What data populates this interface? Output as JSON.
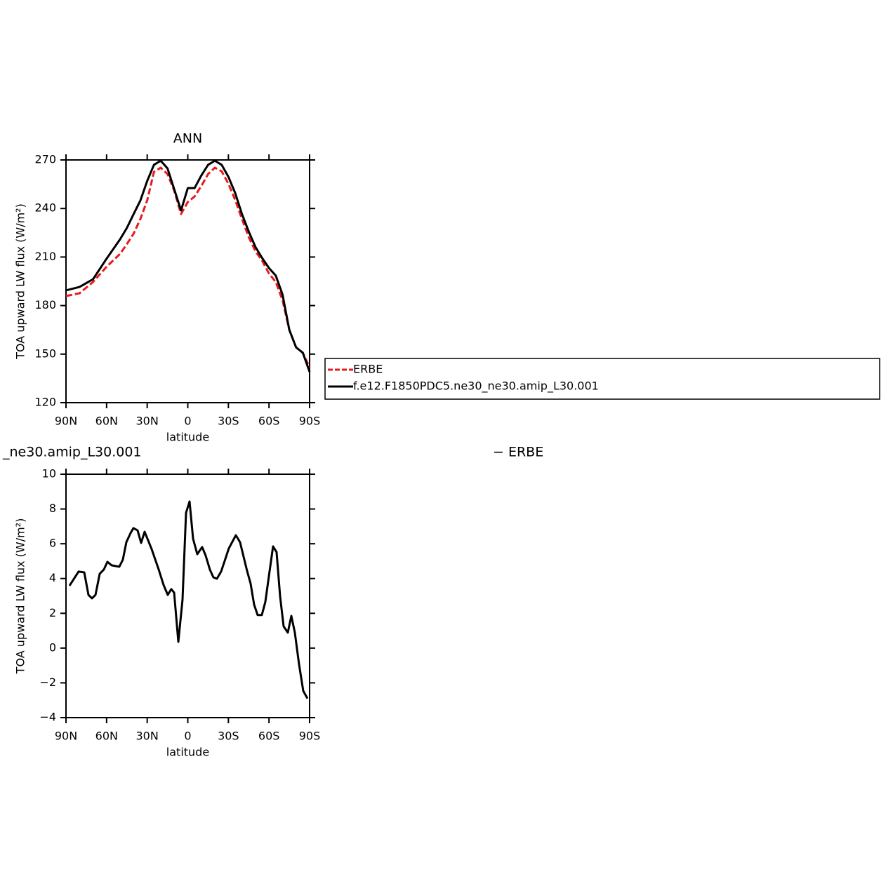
{
  "chart_data": [
    {
      "type": "line",
      "title": "ANN",
      "xlabel": "latitude",
      "ylabel": "TOA upward LW flux (W/m²)",
      "xlim": [
        90,
        -90
      ],
      "xticks": [
        {
          "value": 90,
          "label": "90N"
        },
        {
          "value": 60,
          "label": "60N"
        },
        {
          "value": 30,
          "label": "30N"
        },
        0,
        {
          "value": -30,
          "label": "30S"
        },
        {
          "value": -60,
          "label": "60S"
        },
        {
          "value": -90,
          "label": "90S"
        }
      ],
      "ylim": [
        120,
        270
      ],
      "yticks": [
        120,
        150,
        180,
        210,
        240,
        270
      ],
      "x": [
        90,
        80,
        70,
        60,
        50,
        45,
        40,
        35,
        30,
        25,
        20,
        15,
        10,
        5,
        0,
        -5,
        -10,
        -15,
        -20,
        -25,
        -30,
        -35,
        -40,
        -45,
        -50,
        -55,
        -60,
        -65,
        -70,
        -75,
        -80,
        -85,
        -90
      ],
      "series": [
        {
          "name": "ERBE",
          "color": "#e8191b",
          "line_style": "dashed",
          "values": [
            185.9,
            187.6,
            194.6,
            204,
            212,
            218,
            224.5,
            233.6,
            245,
            262.6,
            265.2,
            261.3,
            251,
            236.6,
            244,
            247.4,
            253.9,
            261.3,
            265.2,
            263,
            255.3,
            245.3,
            233.6,
            222.3,
            213.6,
            207.6,
            199.8,
            194.6,
            183.3,
            165,
            154.2,
            150.8,
            141.7
          ]
        },
        {
          "name": "f.e12.F1850PDC5.ne30_ne30.amip_L30.001",
          "color": "#000000",
          "line_style": "solid",
          "values": [
            189.4,
            191.5,
            196.3,
            209,
            221,
            228,
            236.6,
            245,
            257,
            267,
            269.5,
            264.8,
            251.8,
            238.8,
            252.6,
            252.6,
            260.4,
            267,
            269.5,
            267,
            259.6,
            249.6,
            236.6,
            225.8,
            216.2,
            209.3,
            203.2,
            198.5,
            186.8,
            165,
            154.2,
            150.8,
            139
          ]
        }
      ]
    },
    {
      "type": "line",
      "title_parts": [
        "_ne30.amip_L30.001",
        "− ERBE"
      ],
      "xlabel": "latitude",
      "ylabel": "TOA upward LW flux (W/m²)",
      "xlim": [
        90,
        -90
      ],
      "xticks": [
        {
          "value": 90,
          "label": "90N"
        },
        {
          "value": 60,
          "label": "60N"
        },
        {
          "value": 30,
          "label": "30N"
        },
        0,
        {
          "value": -30,
          "label": "30S"
        },
        {
          "value": -60,
          "label": "60S"
        },
        {
          "value": -90,
          "label": "90S"
        }
      ],
      "ylim": [
        -4,
        10
      ],
      "yticks": [
        {
          "value": -4,
          "label": "−4"
        },
        {
          "value": -2,
          "label": "−2"
        },
        0,
        2,
        4,
        6,
        8,
        10
      ],
      "color": "#000000",
      "x": [
        87.4,
        80.7,
        76.5,
        73.4,
        70.8,
        68.2,
        65.1,
        62.0,
        59.4,
        56.3,
        50.6,
        48.0,
        45.4,
        42.3,
        40.2,
        37.1,
        34.5,
        31.9,
        26.7,
        21.5,
        17.9,
        14.8,
        12.2,
        10.1,
        7.0,
        3.9,
        1.3,
        -1.3,
        -3.9,
        -7.0,
        -10.6,
        -13.2,
        -16.3,
        -18.9,
        -21.5,
        -24.6,
        -27.2,
        -30.3,
        -35.5,
        -38.6,
        -43.8,
        -46.4,
        -49.0,
        -51.6,
        -54.7,
        -57.3,
        -60.4,
        -63.0,
        -65.6,
        -68.2,
        -70.8,
        -73.9,
        -76.5,
        -79.1,
        -82.2,
        -85.3,
        -88.4
      ],
      "values": [
        3.59,
        4.4,
        4.35,
        3.06,
        2.86,
        3.06,
        4.27,
        4.52,
        4.96,
        4.76,
        4.68,
        5.08,
        6.09,
        6.61,
        6.9,
        6.77,
        6.05,
        6.69,
        5.69,
        4.52,
        3.63,
        3.06,
        3.39,
        3.19,
        0.36,
        2.78,
        7.78,
        8.43,
        6.29,
        5.4,
        5.81,
        5.32,
        4.52,
        4.07,
        3.99,
        4.4,
        5.0,
        5.73,
        6.49,
        6.09,
        4.44,
        3.71,
        2.5,
        1.9,
        1.9,
        2.66,
        4.4,
        5.85,
        5.52,
        2.98,
        1.25,
        0.89,
        1.85,
        0.89,
        -0.93,
        -2.46,
        -2.9
      ]
    }
  ]
}
